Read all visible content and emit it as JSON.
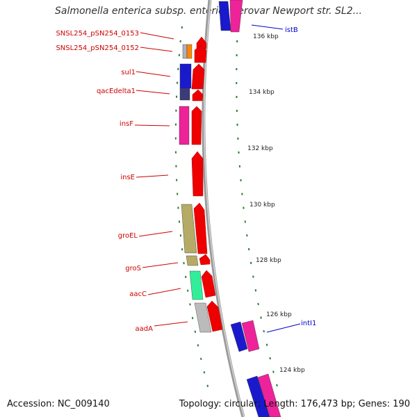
{
  "title": "Salmonella enterica subsp. enterica serovar Newport str. SL2...",
  "footer": {
    "accession": "Accession: NC_009140",
    "summary": "Topology: circular; Length: 176,473 bp; Genes: 190"
  },
  "colors": {
    "label_left": "#cc0000",
    "label_right": "#0000cc",
    "tick": "#2e7d2e",
    "backbone": "#999999",
    "cds": "#ee0000"
  },
  "ticks": [
    {
      "label": "136 kbp"
    },
    {
      "label": "134 kbp"
    },
    {
      "label": "132 kbp"
    },
    {
      "label": "130 kbp"
    },
    {
      "label": "128 kbp"
    },
    {
      "label": "126 kbp"
    },
    {
      "label": "124 kbp"
    }
  ],
  "gene_labels_left": [
    {
      "name": "SNSL254_pSN254_0153"
    },
    {
      "name": "SNSL254_pSN254_0152"
    },
    {
      "name": "sul1"
    },
    {
      "name": "qacEdelta1"
    },
    {
      "name": "insF"
    },
    {
      "name": "insE"
    },
    {
      "name": "groEL"
    },
    {
      "name": "groS"
    },
    {
      "name": "aacC"
    },
    {
      "name": "aadA"
    }
  ],
  "gene_labels_right": [
    {
      "name": "istB"
    },
    {
      "name": "intI1"
    }
  ]
}
